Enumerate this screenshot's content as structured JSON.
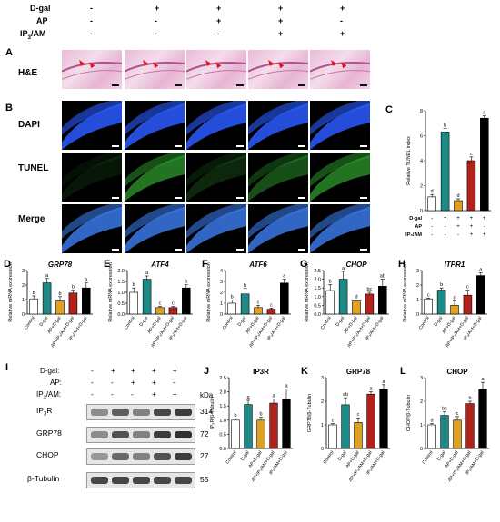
{
  "header_rows": [
    {
      "label": "D-gal",
      "vals": [
        "-",
        "+",
        "+",
        "+",
        "+"
      ]
    },
    {
      "label": "AP",
      "vals": [
        "-",
        "-",
        "+",
        "+",
        "-"
      ]
    },
    {
      "label": "IP3/AM",
      "vals": [
        "-",
        "-",
        "-",
        "+",
        "+"
      ]
    }
  ],
  "panel_letters": {
    "A": "A",
    "B": "B",
    "C": "C",
    "D": "D",
    "E": "E",
    "F": "F",
    "G": "G",
    "H": "H",
    "I": "I",
    "J": "J",
    "K": "K",
    "L": "L"
  },
  "row_labels": {
    "he": "H&E",
    "dapi": "DAPI",
    "tunel": "TUNEL",
    "merge": "Merge"
  },
  "colors": {
    "control": "#ffffff",
    "dgal": "#1e8a87",
    "ap": "#e0a020",
    "ap_ip3": "#b2221b",
    "ip3": "#000000"
  },
  "chart_data": [
    {
      "id": "C",
      "type": "bar",
      "ylabel": "Relative TUNEL index",
      "ylim": [
        0,
        8
      ],
      "yticks": [
        "0",
        "2",
        "4",
        "6",
        "8"
      ],
      "values": [
        1.1,
        6.3,
        0.8,
        4.0,
        7.4
      ],
      "errors": [
        0.2,
        0.3,
        0.15,
        0.3,
        0.2
      ],
      "letters": [
        "d",
        "b",
        "d",
        "c",
        "a"
      ],
      "condition_rows": [
        {
          "label": "D-gal",
          "vals": [
            "-",
            "+",
            "+",
            "+",
            "+"
          ]
        },
        {
          "label": "AP",
          "vals": [
            "-",
            "-",
            "+",
            "+",
            "-"
          ]
        },
        {
          "label": "IP3/AM",
          "vals": [
            "-",
            "-",
            "-",
            "+",
            "+"
          ]
        }
      ]
    },
    {
      "id": "D",
      "type": "bar",
      "title": "GRP78",
      "ylabel": "Relative mRNA expression",
      "ylim": [
        0,
        3
      ],
      "yticks": [
        "0",
        "1",
        "2",
        "3"
      ],
      "values": [
        1.05,
        2.15,
        0.9,
        1.45,
        1.8
      ],
      "errors": [
        0.2,
        0.3,
        0.3,
        0.2,
        0.35
      ],
      "letters": [
        "b",
        "a",
        "b",
        "b",
        "a"
      ],
      "categories": [
        "Control",
        "D-gal",
        "AP+D-gal",
        "AP+IP3/AM+D-gal",
        "IP3/AM+D-gal"
      ]
    },
    {
      "id": "E",
      "type": "bar",
      "title": "ATF4",
      "ylabel": "Relative mRNA expression",
      "ylim": [
        0,
        2
      ],
      "yticks": [
        "0.0",
        "0.5",
        "1.0",
        "1.5",
        "2.0"
      ],
      "values": [
        1.0,
        1.6,
        0.3,
        0.3,
        1.2
      ],
      "errors": [
        0.2,
        0.15,
        0.05,
        0.05,
        0.15
      ],
      "letters": [
        "b",
        "a",
        "c",
        "c",
        "b"
      ],
      "categories": [
        "Control",
        "D-gal",
        "AP+D-gal",
        "AP+IP3/AM+D-gal",
        "IP3/AM+D-gal"
      ]
    },
    {
      "id": "F",
      "type": "bar",
      "title": "ATF6",
      "ylabel": "Relative mRNA expression",
      "ylim": [
        0,
        4
      ],
      "yticks": [
        "0",
        "1",
        "2",
        "3",
        "4"
      ],
      "values": [
        1.0,
        1.85,
        0.6,
        0.45,
        2.85
      ],
      "errors": [
        0.3,
        0.5,
        0.2,
        0.1,
        0.35
      ],
      "letters": [
        "b",
        "b",
        "c",
        "c",
        "a"
      ],
      "categories": [
        "Control",
        "D-gal",
        "AP+D-gal",
        "AP+IP3/AM+D-gal",
        "IP3/AM+D-gal"
      ]
    },
    {
      "id": "G",
      "type": "bar",
      "title": "CHOP",
      "ylabel": "Relative mRNA expression",
      "ylim": [
        0,
        2.5
      ],
      "yticks": [
        "0.0",
        "0.5",
        "1.0",
        "1.5",
        "2.0",
        "2.5"
      ],
      "values": [
        1.35,
        2.0,
        0.75,
        1.15,
        1.6
      ],
      "errors": [
        0.35,
        0.45,
        0.05,
        0.1,
        0.4
      ],
      "letters": [
        "b",
        "a",
        "d",
        "bc",
        "ab"
      ],
      "categories": [
        "Control",
        "D-gal",
        "AP+D-gal",
        "AP+IP3/AM+D-gal",
        "IP3/AM+D-gal"
      ]
    },
    {
      "id": "H",
      "type": "bar",
      "title": "ITPR1",
      "ylabel": "Relative mRNA expression",
      "ylim": [
        0,
        3
      ],
      "yticks": [
        "0",
        "1",
        "2",
        "3"
      ],
      "values": [
        1.05,
        1.65,
        0.6,
        1.3,
        2.65
      ],
      "errors": [
        0.05,
        0.15,
        0.3,
        0.35,
        0.2
      ],
      "letters": [
        "c",
        "b",
        "d",
        "c",
        "a"
      ],
      "categories": [
        "Control",
        "D-gal",
        "AP+D-gal",
        "AP+IP3/AM+D-gal",
        "IP3/AM+D-gal"
      ]
    },
    {
      "id": "J",
      "type": "bar",
      "title": "IP3R",
      "ylabel": "IP3R/β-Tubulin",
      "ylim": [
        0,
        2.5
      ],
      "yticks": [
        "0.0",
        "0.5",
        "1.0",
        "1.5",
        "2.0",
        "2.5"
      ],
      "values": [
        1.0,
        1.55,
        1.0,
        1.6,
        1.75
      ],
      "errors": [
        0.05,
        0.15,
        0.1,
        0.15,
        0.35
      ],
      "letters": [
        "b",
        "a",
        "b",
        "a",
        "a"
      ],
      "categories": [
        "Control",
        "D-gal",
        "AP+D-gal",
        "AP+IP3/AM+D-gal",
        "IP3/AM+D-gal"
      ]
    },
    {
      "id": "K",
      "type": "bar",
      "title": "GRP78",
      "ylabel": "GRP78/β-Tubulin",
      "ylim": [
        0,
        3
      ],
      "yticks": [
        "0",
        "1",
        "2",
        "3"
      ],
      "values": [
        1.0,
        1.85,
        1.1,
        2.3,
        2.5
      ],
      "errors": [
        0.05,
        0.3,
        0.2,
        0.1,
        0.2
      ],
      "letters": [
        "c",
        "ab",
        "c",
        "a",
        "a"
      ],
      "categories": [
        "Control",
        "D-gal",
        "AP+D-gal",
        "AP+IP3/AM+D-gal",
        "IP3/AM+D-gal"
      ]
    },
    {
      "id": "L",
      "type": "bar",
      "title": "CHOP",
      "ylabel": "CHOP/β-Tubulin",
      "ylim": [
        0,
        3
      ],
      "yticks": [
        "0",
        "1",
        "2",
        "3"
      ],
      "values": [
        1.0,
        1.4,
        1.2,
        1.9,
        2.5
      ],
      "errors": [
        0.05,
        0.15,
        0.15,
        0.1,
        0.3
      ],
      "letters": [
        "d",
        "bc",
        "c",
        "b",
        "a"
      ],
      "categories": [
        "Control",
        "D-gal",
        "AP+D-gal",
        "AP+IP3/AM+D-gal",
        "IP3/AM+D-gal"
      ]
    }
  ],
  "western": {
    "cond_rows": [
      {
        "label": "D-gal:",
        "vals": [
          "-",
          "+",
          "+",
          "+",
          "+"
        ]
      },
      {
        "label": "AP:",
        "vals": [
          "-",
          "-",
          "+",
          "+",
          "-"
        ]
      },
      {
        "label": "IP3/AM:",
        "vals": [
          "-",
          "-",
          "-",
          "+",
          "+"
        ]
      }
    ],
    "kda_label": "kDa",
    "bands": [
      {
        "name": "IP3R",
        "kda": "314",
        "intensity": [
          0.5,
          0.7,
          0.55,
          0.8,
          0.85
        ]
      },
      {
        "name": "GRP78",
        "kda": "72",
        "intensity": [
          0.5,
          0.75,
          0.55,
          0.85,
          0.9
        ]
      },
      {
        "name": "CHOP",
        "kda": "27",
        "intensity": [
          0.45,
          0.65,
          0.55,
          0.75,
          0.85
        ]
      },
      {
        "name": "β-Tubulin",
        "kda": "55",
        "intensity": [
          0.8,
          0.8,
          0.8,
          0.8,
          0.8
        ]
      }
    ]
  }
}
